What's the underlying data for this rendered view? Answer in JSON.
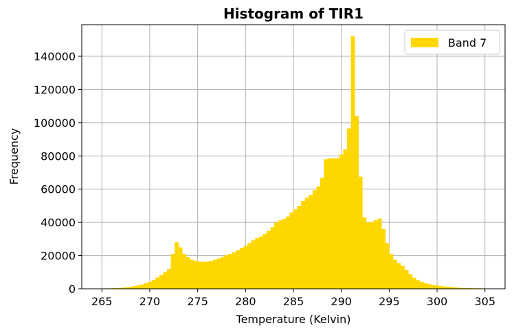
{
  "chart_data": {
    "type": "bar",
    "title": "Histogram of TIR1",
    "xlabel": "Temperature (Kelvin)",
    "ylabel": "Frequency",
    "xlim": [
      262.9,
      307.1
    ],
    "ylim": [
      0,
      159000
    ],
    "xticks": [
      265,
      270,
      275,
      280,
      285,
      290,
      295,
      300,
      305
    ],
    "yticks": [
      0,
      20000,
      40000,
      60000,
      80000,
      100000,
      120000,
      140000
    ],
    "grid": true,
    "legend_position": "top-right",
    "series": [
      {
        "name": "Band 7",
        "color": "#FFD700",
        "bin_start": 265.0,
        "bin_width": 0.4,
        "values": [
          200,
          250,
          300,
          400,
          500,
          700,
          900,
          1200,
          1600,
          2100,
          2600,
          3300,
          4200,
          5400,
          6800,
          8200,
          10000,
          12000,
          21000,
          28000,
          25000,
          21000,
          19000,
          17500,
          16800,
          16400,
          16200,
          16300,
          16800,
          17500,
          18300,
          19200,
          20200,
          21000,
          22000,
          23200,
          24500,
          25800,
          27500,
          29200,
          30500,
          31500,
          33000,
          34800,
          37000,
          39800,
          41200,
          42000,
          43500,
          46000,
          47800,
          50000,
          52800,
          54800,
          56500,
          59300,
          61600,
          66800,
          78000,
          78500,
          78500,
          78600,
          80800,
          84000,
          96500,
          152000,
          104000,
          67500,
          43000,
          40000,
          40300,
          41300,
          42300,
          36000,
          27500,
          21000,
          17500,
          15500,
          13800,
          11400,
          8800,
          6700,
          5200,
          4100,
          3400,
          2800,
          2300,
          1900,
          1600,
          1400,
          1200,
          1000,
          800,
          600,
          500,
          450,
          400,
          350,
          300,
          250
        ]
      }
    ]
  }
}
